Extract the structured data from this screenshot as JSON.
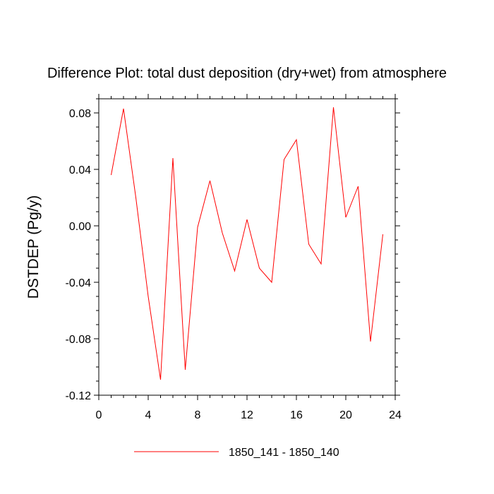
{
  "chart_data": {
    "type": "line",
    "title": "Difference Plot: total dust deposition (dry+wet) from atmosphere",
    "ylabel": "DSTDEP  (Pg/y)",
    "xlabel": "",
    "xlim": [
      0,
      24
    ],
    "ylim": [
      -0.12,
      0.09
    ],
    "xticks": [
      0,
      4,
      8,
      12,
      16,
      20,
      24
    ],
    "xtick_labels": [
      "0",
      "4",
      "8",
      "12",
      "16",
      "20",
      "24"
    ],
    "yticks": [
      -0.12,
      -0.08,
      -0.04,
      0.0,
      0.04,
      0.08
    ],
    "ytick_labels": [
      "-0.12",
      "-0.08",
      "-0.04",
      "0.00",
      "0.04",
      "0.08"
    ],
    "grid": false,
    "legend_position": "bottom",
    "series": [
      {
        "name": "1850_141 - 1850_140",
        "color": "#ff0000",
        "x": [
          1,
          2,
          3,
          4,
          5,
          6,
          7,
          8,
          9,
          10,
          11,
          12,
          13,
          14,
          15,
          16,
          17,
          18,
          19,
          20,
          21,
          22,
          23
        ],
        "y": [
          0.036,
          0.083,
          0.02,
          -0.05,
          -0.109,
          0.048,
          -0.102,
          -0.001,
          0.032,
          -0.005,
          -0.032,
          0.0045,
          -0.03,
          -0.04,
          0.047,
          0.061,
          -0.013,
          -0.027,
          0.084,
          0.006,
          0.028,
          -0.082,
          -0.006
        ]
      }
    ]
  }
}
